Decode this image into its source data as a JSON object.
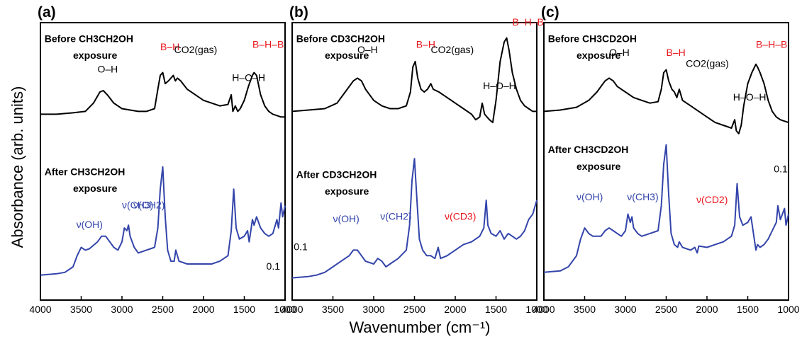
{
  "figure": {
    "ylabel": "Absorbance (arb. units)",
    "xlabel": "Wavenumber (cm⁻¹)",
    "colors": {
      "before": "#000000",
      "after": "#3344aa",
      "label_red": "#e8161b",
      "arrow_light": "#5aa9e0",
      "arrow_dark": "#2f3f9a"
    }
  },
  "chart_data": [
    {
      "type": "line",
      "panel": "(a)",
      "xlim": [
        4000,
        1000
      ],
      "x_reversed": true,
      "x_ticks": [
        4000,
        3500,
        3000,
        2500,
        2000,
        1500,
        1000
      ],
      "x_tick_labels": [
        "4000",
        "3500",
        "3000",
        "2500",
        "2000",
        "1500",
        "1000"
      ],
      "ylim": [
        0,
        10
      ],
      "y_ticks": [],
      "series": [
        {
          "name": "Before CH3CH2OH exposure",
          "color": "#000000",
          "x": [
            4000,
            3800,
            3600,
            3450,
            3350,
            3270,
            3230,
            3180,
            3100,
            3000,
            2900,
            2800,
            2700,
            2600,
            2560,
            2530,
            2500,
            2470,
            2430,
            2400,
            2370,
            2345,
            2320,
            2280,
            2200,
            2100,
            2000,
            1900,
            1800,
            1700,
            1660,
            1640,
            1610,
            1580,
            1550,
            1500,
            1450,
            1400,
            1380,
            1350,
            1300,
            1250,
            1200,
            1150,
            1100,
            1050,
            1000
          ],
          "y": [
            6.7,
            6.7,
            6.75,
            6.8,
            7.1,
            7.5,
            7.55,
            7.4,
            7.1,
            6.9,
            6.85,
            6.8,
            6.8,
            6.9,
            7.6,
            8.1,
            8.2,
            7.8,
            7.9,
            8.0,
            8.1,
            7.9,
            8.0,
            7.9,
            7.6,
            7.4,
            7.2,
            7.1,
            7.0,
            7.05,
            7.4,
            6.8,
            7.0,
            6.8,
            6.9,
            7.2,
            7.7,
            8.1,
            8.2,
            8.1,
            7.4,
            7.0,
            6.8,
            6.7,
            6.65,
            6.6,
            6.6
          ]
        },
        {
          "name": "After CH3CH2OH exposure",
          "color": "#3344aa",
          "x": [
            4000,
            3800,
            3700,
            3600,
            3550,
            3500,
            3450,
            3400,
            3300,
            3250,
            3200,
            3150,
            3100,
            3050,
            3000,
            2970,
            2940,
            2920,
            2900,
            2850,
            2800,
            2700,
            2600,
            2560,
            2530,
            2500,
            2470,
            2440,
            2400,
            2360,
            2340,
            2300,
            2200,
            2100,
            2000,
            1900,
            1800,
            1700,
            1660,
            1630,
            1600,
            1560,
            1500,
            1460,
            1440,
            1400,
            1380,
            1350,
            1300,
            1250,
            1200,
            1150,
            1100,
            1080,
            1050,
            1030,
            1000
          ],
          "y": [
            0.9,
            0.95,
            1.0,
            1.2,
            1.6,
            1.9,
            1.8,
            1.85,
            2.1,
            2.3,
            2.3,
            2.1,
            1.9,
            1.8,
            2.1,
            2.6,
            2.5,
            2.7,
            2.3,
            1.9,
            1.7,
            1.8,
            1.9,
            2.6,
            4.0,
            4.8,
            3.0,
            1.8,
            1.4,
            1.4,
            1.8,
            1.4,
            1.3,
            1.3,
            1.3,
            1.3,
            1.4,
            1.6,
            2.5,
            4.0,
            2.6,
            2.2,
            2.3,
            2.5,
            2.1,
            2.9,
            2.7,
            3.0,
            2.6,
            2.4,
            2.3,
            2.4,
            2.9,
            2.6,
            3.5,
            3.0,
            3.4
          ]
        }
      ],
      "annotations": [
        {
          "text": "Before CH3CH2OH",
          "x_units": 3950,
          "y_units": 9.3,
          "color": "#000000"
        },
        {
          "text": "exposure",
          "x_units": 3600,
          "y_units": 8.7,
          "color": "#000000"
        },
        {
          "text": "O–H",
          "x_units": 3300,
          "y_units": 8.2,
          "color": "#000000"
        },
        {
          "text": "B–H",
          "x_units": 2530,
          "y_units": 9.0,
          "color": "#e8161b"
        },
        {
          "text": "CO2(gas)",
          "x_units": 2360,
          "y_units": 8.9,
          "color": "#000000"
        },
        {
          "text": "H–O–H",
          "x_units": 1650,
          "y_units": 7.9,
          "color": "#000000"
        },
        {
          "text": "B–H–B",
          "x_units": 1400,
          "y_units": 9.1,
          "color": "#e8161b"
        },
        {
          "text": "After CH3CH2OH",
          "x_units": 3950,
          "y_units": 4.5,
          "color": "#000000"
        },
        {
          "text": "exposure",
          "x_units": 3600,
          "y_units": 3.9,
          "color": "#000000"
        },
        {
          "text": "ν(OH)",
          "x_units": 3560,
          "y_units": 2.6,
          "color": "#3344aa"
        },
        {
          "text": "ν(CH3)",
          "x_units": 3000,
          "y_units": 3.3,
          "color": "#3344aa"
        },
        {
          "text": "ν(CH2)",
          "x_units": 2860,
          "y_units": 3.3,
          "color": "#3344aa"
        },
        {
          "text": "0.1",
          "x_units": 1230,
          "y_units": 1.1,
          "color": "#000000"
        }
      ]
    },
    {
      "type": "line",
      "panel": "(b)",
      "xlim": [
        4000,
        1000
      ],
      "x_reversed": true,
      "x_ticks": [
        4000,
        3500,
        3000,
        2500,
        2000,
        1500,
        1000
      ],
      "x_tick_labels": [
        "4000",
        "3500",
        "3000",
        "2500",
        "2000",
        "1500",
        "1000"
      ],
      "ylim": [
        0,
        10
      ],
      "y_ticks": [],
      "series": [
        {
          "name": "Before CD3CH2OH exposure",
          "color": "#000000",
          "x": [
            4000,
            3800,
            3600,
            3450,
            3350,
            3250,
            3200,
            3150,
            3100,
            3000,
            2900,
            2800,
            2700,
            2600,
            2550,
            2520,
            2490,
            2460,
            2420,
            2380,
            2340,
            2300,
            2270,
            2200,
            2100,
            2000,
            1900,
            1800,
            1750,
            1700,
            1670,
            1640,
            1610,
            1580,
            1540,
            1500,
            1450,
            1400,
            1370,
            1340,
            1300,
            1250,
            1200,
            1150,
            1100,
            1050,
            1000
          ],
          "y": [
            6.8,
            6.85,
            6.9,
            7.1,
            7.5,
            7.9,
            8.0,
            7.9,
            7.6,
            7.2,
            7.0,
            6.9,
            6.9,
            7.0,
            7.5,
            8.4,
            8.6,
            8.0,
            7.6,
            7.5,
            7.6,
            7.8,
            7.6,
            7.5,
            7.3,
            7.1,
            6.9,
            6.7,
            6.5,
            6.6,
            7.1,
            6.7,
            6.6,
            6.5,
            6.4,
            7.2,
            8.6,
            9.3,
            9.45,
            9.0,
            8.2,
            7.6,
            7.2,
            7.0,
            6.9,
            6.8,
            6.8
          ]
        },
        {
          "name": "After CD3CH2OH exposure",
          "color": "#3344aa",
          "x": [
            4000,
            3800,
            3700,
            3600,
            3500,
            3400,
            3300,
            3250,
            3200,
            3150,
            3100,
            3000,
            2950,
            2900,
            2850,
            2800,
            2700,
            2600,
            2560,
            2530,
            2500,
            2470,
            2440,
            2400,
            2350,
            2300,
            2250,
            2210,
            2180,
            2100,
            2000,
            1900,
            1800,
            1700,
            1650,
            1620,
            1600,
            1560,
            1500,
            1450,
            1400,
            1350,
            1300,
            1250,
            1200,
            1150,
            1100,
            1050,
            1000
          ],
          "y": [
            0.8,
            0.85,
            0.9,
            1.0,
            1.2,
            1.4,
            1.6,
            1.8,
            1.8,
            1.6,
            1.4,
            1.3,
            1.5,
            1.4,
            1.2,
            1.3,
            1.5,
            1.8,
            2.7,
            4.3,
            5.1,
            3.6,
            2.2,
            1.8,
            1.6,
            1.6,
            1.5,
            1.9,
            1.5,
            1.6,
            1.8,
            2.0,
            2.1,
            2.3,
            2.6,
            3.6,
            2.7,
            2.4,
            2.3,
            2.5,
            2.2,
            2.4,
            2.3,
            2.2,
            2.3,
            2.5,
            2.9,
            3.1,
            3.6
          ]
        }
      ],
      "annotations": [
        {
          "text": "Before CD3CH2OH",
          "x_units": 3950,
          "y_units": 9.3,
          "color": "#000000"
        },
        {
          "text": "exposure",
          "x_units": 3600,
          "y_units": 8.7,
          "color": "#000000"
        },
        {
          "text": "O–H",
          "x_units": 3200,
          "y_units": 8.9,
          "color": "#000000"
        },
        {
          "text": "B–H",
          "x_units": 2480,
          "y_units": 9.1,
          "color": "#e8161b"
        },
        {
          "text": "CO2(gas)",
          "x_units": 2300,
          "y_units": 8.9,
          "color": "#000000"
        },
        {
          "text": "H–O–H",
          "x_units": 1660,
          "y_units": 7.6,
          "color": "#000000"
        },
        {
          "text": "B–H–B",
          "x_units": 1300,
          "y_units": 9.9,
          "color": "#e8161b"
        },
        {
          "text": "After CD3CH2OH",
          "x_units": 3950,
          "y_units": 4.4,
          "color": "#000000"
        },
        {
          "text": "exposure",
          "x_units": 3600,
          "y_units": 3.8,
          "color": "#000000"
        },
        {
          "text": "ν(OH)",
          "x_units": 3500,
          "y_units": 2.8,
          "color": "#3344aa"
        },
        {
          "text": "ν(CH2)",
          "x_units": 2920,
          "y_units": 2.9,
          "color": "#3344aa"
        },
        {
          "text": "ν(CD3)",
          "x_units": 2130,
          "y_units": 2.9,
          "color": "#e8161b"
        },
        {
          "text": "0.1",
          "x_units": 3980,
          "y_units": 1.8,
          "color": "#000000"
        }
      ]
    },
    {
      "type": "line",
      "panel": "(c)",
      "xlim": [
        4000,
        1000
      ],
      "x_reversed": true,
      "x_ticks": [
        4000,
        3500,
        3000,
        2500,
        2000,
        1500,
        1000
      ],
      "x_tick_labels": [
        "4000",
        "3500",
        "3000",
        "2500",
        "2000",
        "1500",
        "1000"
      ],
      "ylim": [
        0,
        10
      ],
      "y_ticks": [],
      "series": [
        {
          "name": "Before CH3CD2OH exposure",
          "color": "#000000",
          "x": [
            4000,
            3800,
            3600,
            3450,
            3350,
            3250,
            3200,
            3150,
            3100,
            3000,
            2900,
            2800,
            2700,
            2600,
            2560,
            2530,
            2500,
            2470,
            2430,
            2400,
            2370,
            2340,
            2300,
            2200,
            2100,
            2000,
            1900,
            1800,
            1700,
            1660,
            1640,
            1610,
            1580,
            1550,
            1500,
            1450,
            1400,
            1380,
            1350,
            1300,
            1250,
            1200,
            1150,
            1100,
            1050,
            1000
          ],
          "y": [
            6.8,
            6.85,
            6.95,
            7.2,
            7.5,
            7.9,
            8.0,
            7.9,
            7.7,
            7.5,
            7.3,
            7.2,
            7.1,
            7.15,
            7.6,
            8.2,
            8.3,
            7.9,
            7.6,
            7.5,
            7.3,
            7.6,
            7.2,
            7.0,
            6.8,
            6.6,
            6.4,
            6.3,
            6.2,
            6.5,
            6.1,
            6.0,
            6.3,
            7.0,
            7.8,
            8.2,
            8.5,
            8.4,
            8.2,
            7.8,
            7.2,
            6.8,
            6.6,
            6.5,
            6.45,
            6.4
          ]
        },
        {
          "name": "After CH3CD2OH exposure",
          "color": "#3344aa",
          "x": [
            4000,
            3800,
            3700,
            3600,
            3550,
            3500,
            3450,
            3400,
            3300,
            3250,
            3200,
            3150,
            3100,
            3050,
            3000,
            2970,
            2940,
            2920,
            2900,
            2850,
            2800,
            2700,
            2600,
            2560,
            2530,
            2500,
            2470,
            2440,
            2400,
            2360,
            2340,
            2300,
            2200,
            2150,
            2120,
            2100,
            2000,
            1900,
            1800,
            1700,
            1660,
            1630,
            1600,
            1560,
            1500,
            1460,
            1440,
            1400,
            1380,
            1350,
            1300,
            1250,
            1200,
            1150,
            1130,
            1100,
            1050,
            1030,
            1000
          ],
          "y": [
            1.0,
            1.05,
            1.2,
            1.6,
            2.2,
            2.6,
            2.4,
            2.3,
            2.3,
            2.5,
            2.6,
            2.5,
            2.4,
            2.3,
            2.5,
            3.1,
            2.8,
            3.0,
            2.6,
            2.4,
            2.3,
            2.4,
            2.5,
            3.4,
            4.9,
            5.6,
            3.8,
            2.4,
            2.0,
            1.9,
            2.1,
            1.9,
            1.8,
            1.9,
            1.7,
            1.95,
            1.9,
            2.0,
            2.1,
            2.3,
            2.7,
            4.2,
            3.0,
            2.7,
            2.8,
            3.0,
            2.6,
            1.8,
            2.0,
            1.9,
            2.0,
            2.2,
            2.5,
            2.8,
            3.4,
            2.9,
            3.3,
            2.7,
            3.1
          ]
        }
      ],
      "annotations": [
        {
          "text": "Before CH3CD2OH",
          "x_units": 3950,
          "y_units": 9.3,
          "color": "#000000"
        },
        {
          "text": "exposure",
          "x_units": 3600,
          "y_units": 8.7,
          "color": "#000000"
        },
        {
          "text": "O–H",
          "x_units": 3200,
          "y_units": 8.8,
          "color": "#000000"
        },
        {
          "text": "B–H",
          "x_units": 2500,
          "y_units": 8.8,
          "color": "#e8161b"
        },
        {
          "text": "CO2(gas)",
          "x_units": 2260,
          "y_units": 8.4,
          "color": "#000000"
        },
        {
          "text": "H–O–H",
          "x_units": 1680,
          "y_units": 7.2,
          "color": "#000000"
        },
        {
          "text": "B–H–B",
          "x_units": 1400,
          "y_units": 9.1,
          "color": "#e8161b"
        },
        {
          "text": "After CH3CD2OH",
          "x_units": 3950,
          "y_units": 5.3,
          "color": "#000000"
        },
        {
          "text": "exposure",
          "x_units": 3600,
          "y_units": 4.7,
          "color": "#000000"
        },
        {
          "text": "ν(OH)",
          "x_units": 3600,
          "y_units": 3.6,
          "color": "#3344aa"
        },
        {
          "text": "ν(CH3)",
          "x_units": 2980,
          "y_units": 3.6,
          "color": "#3344aa"
        },
        {
          "text": "ν(CD2)",
          "x_units": 2130,
          "y_units": 3.5,
          "color": "#e8161b"
        },
        {
          "text": "0.1",
          "x_units": 1180,
          "y_units": 4.6,
          "color": "#000000"
        }
      ]
    }
  ]
}
